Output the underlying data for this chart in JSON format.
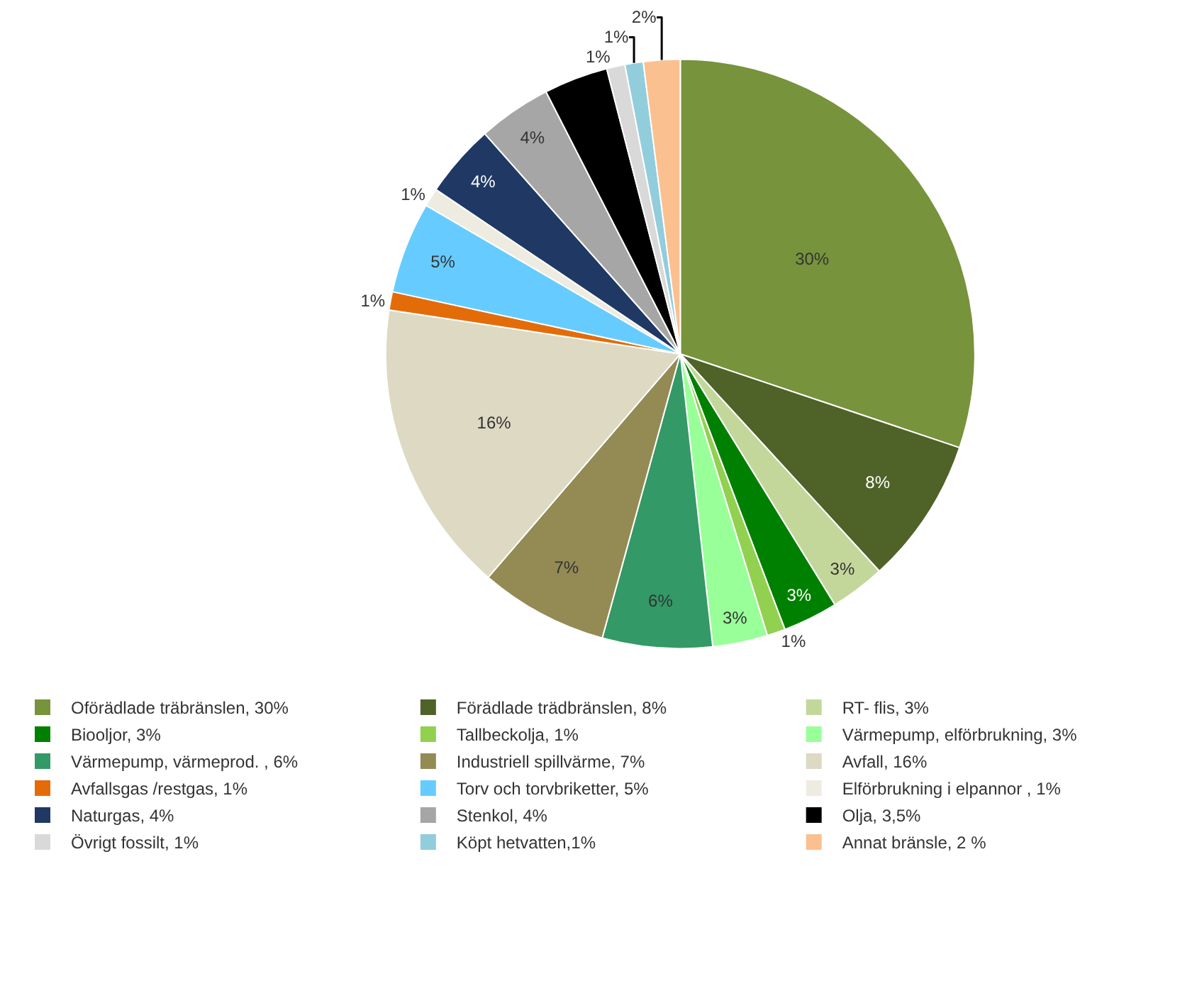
{
  "chart_data": {
    "type": "pie",
    "categories": [
      "Oförädlade träbränslen, 30%",
      "Förädlade trädbränslen, 8%",
      "RT- flis, 3%",
      "Biooljor, 3%",
      "Tallbeckolja, 1%",
      "Värmepump, elförbrukning, 3%",
      "Värmepump, värmeprod. , 6%",
      "Industriell spillvärme, 7%",
      "Avfall, 16%",
      "Avfallsgas /restgas, 1%",
      "Torv och torvbriketter, 5%",
      "Elförbrukning i elpannor , 1%",
      "Naturgas, 4%",
      "Stenkol, 4%",
      "Olja, 3,5%",
      "Övrigt fossilt, 1%",
      "Köpt hetvatten,1%",
      "Annat bränsle, 2 %"
    ],
    "values": [
      30,
      8,
      3,
      3,
      1,
      3,
      6,
      7,
      16,
      1,
      5,
      1,
      4,
      4,
      3.5,
      1,
      1,
      2
    ],
    "value_labels": [
      "30%",
      "8%",
      "3%",
      "3%",
      "1%",
      "3%",
      "6%",
      "7%",
      "16%",
      "1%",
      "5%",
      "1%",
      "4%",
      "4%",
      null,
      "1%",
      "1%",
      "2%"
    ],
    "colors": [
      "#77933c",
      "#4f6228",
      "#c4d79b",
      "#008000",
      "#92d050",
      "#99ff99",
      "#339966",
      "#948a54",
      "#ddd9c3",
      "#e36c09",
      "#66ccff",
      "#eeece1",
      "#1f3864",
      "#a6a6a6",
      "#000000",
      "#d9d9d9",
      "#92cddc",
      "#fac090"
    ],
    "legend": "bottom"
  }
}
